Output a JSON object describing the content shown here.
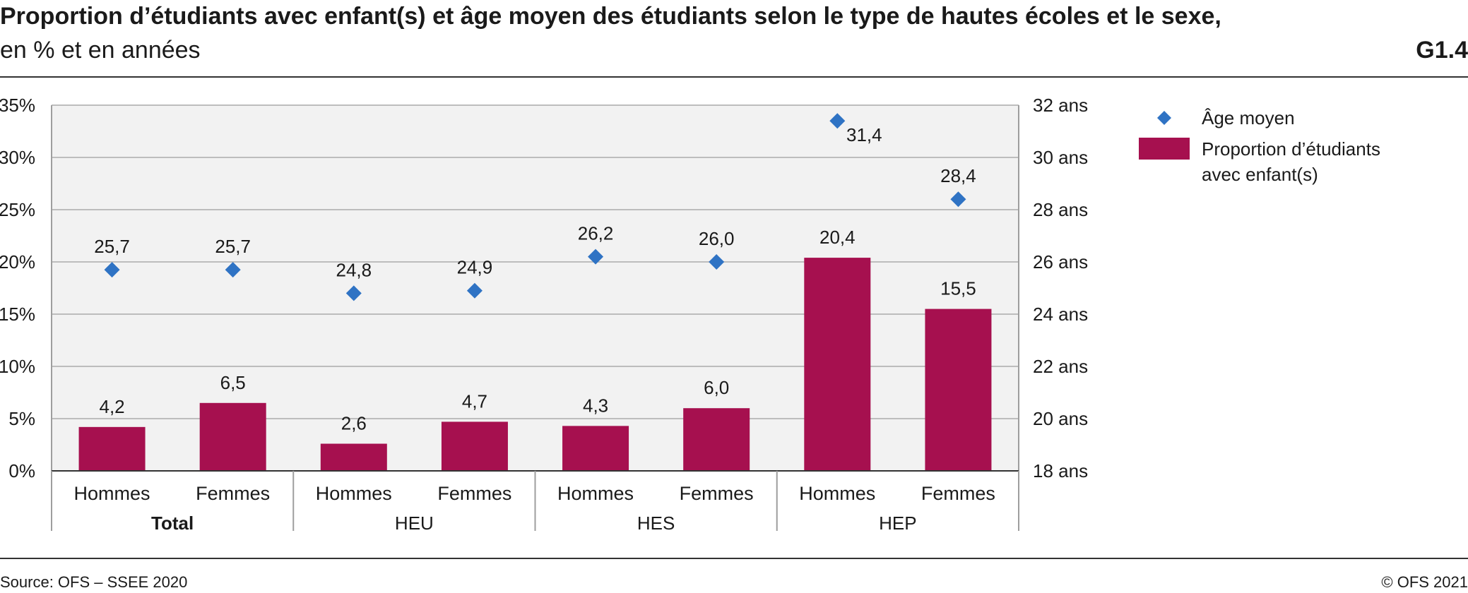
{
  "header": {
    "title": "Proportion d’étudiants avec enfant(s) et âge moyen des étudiants selon le type de hautes écoles et le sexe,",
    "subtitle": "en % et en années",
    "chart_id": "G1.4"
  },
  "footer": {
    "source": "Source: OFS – SSEE 2020",
    "copyright": "© OFS 2021"
  },
  "colors": {
    "bar": "#a6104f",
    "marker": "#2f73c4",
    "plot_bg": "#f2f2f2",
    "grid": "#bdbdbd"
  },
  "chart_data": {
    "type": "bar",
    "groups": [
      {
        "label": "Total",
        "bold": true,
        "categories": [
          "Hommes",
          "Femmes"
        ]
      },
      {
        "label": "HEU",
        "bold": false,
        "categories": [
          "Hommes",
          "Femmes"
        ]
      },
      {
        "label": "HES",
        "bold": false,
        "categories": [
          "Hommes",
          "Femmes"
        ]
      },
      {
        "label": "HEP",
        "bold": false,
        "categories": [
          "Hommes",
          "Femmes"
        ]
      }
    ],
    "categories": [
      "Hommes",
      "Femmes",
      "Hommes",
      "Femmes",
      "Hommes",
      "Femmes",
      "Hommes",
      "Femmes"
    ],
    "series": [
      {
        "name": "Proportion d’étudiants avec enfant(s)",
        "type": "bar",
        "axis": "left",
        "values": [
          4.2,
          6.5,
          2.6,
          4.7,
          4.3,
          6.0,
          20.4,
          15.5
        ],
        "labels": [
          "4,2",
          "6,5",
          "2,6",
          "4,7",
          "4,3",
          "6,0",
          "20,4",
          "15,5"
        ]
      },
      {
        "name": "Âge moyen",
        "type": "scatter",
        "marker": "diamond",
        "axis": "right",
        "values": [
          25.7,
          25.7,
          24.8,
          24.9,
          26.2,
          26.0,
          31.4,
          28.4
        ],
        "labels": [
          "25,7",
          "25,7",
          "24,8",
          "24,9",
          "26,2",
          "26,0",
          "31,4",
          "28,4"
        ]
      }
    ],
    "y_left": {
      "min": 0,
      "max": 35,
      "ticks": [
        0,
        5,
        10,
        15,
        20,
        25,
        30,
        35
      ],
      "tick_labels": [
        "0%",
        "5%",
        "10%",
        "15%",
        "20%",
        "25%",
        "30%",
        "35%"
      ]
    },
    "y_right": {
      "min": 18,
      "max": 32,
      "ticks": [
        18,
        20,
        22,
        24,
        26,
        28,
        30,
        32
      ],
      "tick_labels": [
        "18 ans",
        "20 ans",
        "22 ans",
        "24 ans",
        "26 ans",
        "28 ans",
        "30 ans",
        "32 ans"
      ]
    },
    "legend": {
      "placement": "right",
      "entries": [
        {
          "label": "Âge moyen",
          "lines": [
            "Âge moyen"
          ],
          "symbol": "diamond"
        },
        {
          "label": "Proportion d’étudiants avec enfant(s)",
          "lines": [
            "Proportion d’étudiants",
            "avec enfant(s)"
          ],
          "symbol": "bar"
        }
      ]
    },
    "grid": true
  }
}
